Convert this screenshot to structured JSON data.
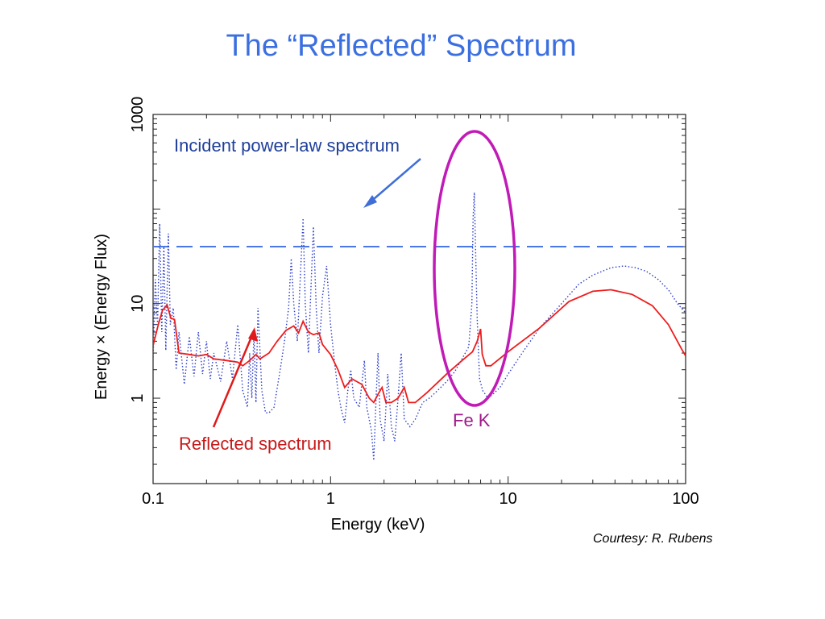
{
  "slide": {
    "title": "The “Reflected” Spectrum",
    "courtesy": "Courtesy:  R. Rubens"
  },
  "chart_data": {
    "type": "line",
    "xlabel": "Energy (keV)",
    "ylabel": "Energy ×  (Energy Flux)",
    "x_scale": "log",
    "y_scale": "log",
    "xlim": [
      0.1,
      100
    ],
    "ylim": [
      0.125,
      1000
    ],
    "x_ticks": [
      {
        "value": 0.1,
        "label": "0.1"
      },
      {
        "value": 1,
        "label": "1"
      },
      {
        "value": 10,
        "label": "10"
      },
      {
        "value": 100,
        "label": "100"
      }
    ],
    "y_ticks": [
      {
        "value": 1,
        "label": "1"
      },
      {
        "value": 10,
        "label": "10"
      },
      {
        "value": 1000,
        "label": "1000"
      }
    ],
    "series": [
      {
        "key": "incident",
        "color": "#4a78e6",
        "style": "dashed",
        "points": [
          [
            0.1,
            40
          ],
          [
            100,
            40
          ]
        ]
      },
      {
        "key": "reflected",
        "color": "#ee1c1c",
        "style": "solid",
        "points": [
          [
            0.1,
            3.6
          ],
          [
            0.107,
            6
          ],
          [
            0.113,
            8.5
          ],
          [
            0.12,
            9.7
          ],
          [
            0.126,
            7
          ],
          [
            0.132,
            6.8
          ],
          [
            0.14,
            3
          ],
          [
            0.16,
            2.9
          ],
          [
            0.18,
            2.8
          ],
          [
            0.2,
            2.9
          ],
          [
            0.22,
            2.6
          ],
          [
            0.26,
            2.5
          ],
          [
            0.3,
            2.4
          ],
          [
            0.32,
            2.2
          ],
          [
            0.35,
            2.5
          ],
          [
            0.38,
            2.9
          ],
          [
            0.4,
            2.6
          ],
          [
            0.45,
            3.0
          ],
          [
            0.5,
            4.0
          ],
          [
            0.56,
            5.2
          ],
          [
            0.62,
            5.8
          ],
          [
            0.66,
            4.9
          ],
          [
            0.7,
            6.5
          ],
          [
            0.75,
            5.0
          ],
          [
            0.8,
            4.7
          ],
          [
            0.86,
            4.9
          ],
          [
            0.9,
            3.7
          ],
          [
            1.0,
            2.9
          ],
          [
            1.1,
            2.0
          ],
          [
            1.2,
            1.3
          ],
          [
            1.32,
            1.6
          ],
          [
            1.5,
            1.4
          ],
          [
            1.65,
            1.0
          ],
          [
            1.75,
            0.9
          ],
          [
            1.85,
            1.1
          ],
          [
            1.95,
            1.3
          ],
          [
            2.05,
            0.9
          ],
          [
            2.2,
            0.9
          ],
          [
            2.4,
            1.0
          ],
          [
            2.6,
            1.3
          ],
          [
            2.75,
            0.9
          ],
          [
            3.0,
            0.9
          ],
          [
            3.5,
            1.15
          ],
          [
            4.5,
            1.8
          ],
          [
            5.5,
            2.5
          ],
          [
            6.3,
            3.1
          ],
          [
            6.7,
            4.0
          ],
          [
            7.0,
            5.4
          ],
          [
            7.15,
            2.9
          ],
          [
            7.5,
            2.2
          ],
          [
            8.0,
            2.2
          ],
          [
            10,
            3.1
          ],
          [
            15,
            5.5
          ],
          [
            22,
            10.5
          ],
          [
            30,
            13.5
          ],
          [
            38,
            14
          ],
          [
            50,
            12.5
          ],
          [
            65,
            9.5
          ],
          [
            80,
            6
          ],
          [
            95,
            3.3
          ],
          [
            100,
            2.8
          ]
        ]
      },
      {
        "key": "incident-spectrum",
        "color": "#2d3fc9",
        "style": "dotted",
        "points": [
          [
            0.1,
            2.5
          ],
          [
            0.103,
            18
          ],
          [
            0.106,
            6
          ],
          [
            0.109,
            70
          ],
          [
            0.112,
            5
          ],
          [
            0.115,
            40
          ],
          [
            0.118,
            3.2
          ],
          [
            0.122,
            55
          ],
          [
            0.125,
            6
          ],
          [
            0.13,
            9
          ],
          [
            0.135,
            2.0
          ],
          [
            0.14,
            5
          ],
          [
            0.15,
            1.4
          ],
          [
            0.16,
            4.5
          ],
          [
            0.17,
            1.7
          ],
          [
            0.18,
            5
          ],
          [
            0.19,
            1.8
          ],
          [
            0.2,
            4
          ],
          [
            0.21,
            1.6
          ],
          [
            0.22,
            3
          ],
          [
            0.24,
            1.5
          ],
          [
            0.26,
            4
          ],
          [
            0.28,
            1.6
          ],
          [
            0.3,
            6
          ],
          [
            0.32,
            1.2
          ],
          [
            0.34,
            0.8
          ],
          [
            0.35,
            3
          ],
          [
            0.36,
            1.0
          ],
          [
            0.37,
            5
          ],
          [
            0.38,
            0.9
          ],
          [
            0.39,
            9
          ],
          [
            0.41,
            1.2
          ],
          [
            0.43,
            0.7
          ],
          [
            0.45,
            0.7
          ],
          [
            0.48,
            0.8
          ],
          [
            0.52,
            2
          ],
          [
            0.55,
            4
          ],
          [
            0.58,
            9
          ],
          [
            0.6,
            30
          ],
          [
            0.62,
            10
          ],
          [
            0.65,
            4
          ],
          [
            0.68,
            25
          ],
          [
            0.7,
            80
          ],
          [
            0.72,
            10
          ],
          [
            0.75,
            3
          ],
          [
            0.78,
            20
          ],
          [
            0.8,
            65
          ],
          [
            0.83,
            9
          ],
          [
            0.86,
            3
          ],
          [
            0.9,
            12
          ],
          [
            0.95,
            25
          ],
          [
            1.0,
            6
          ],
          [
            1.05,
            2.5
          ],
          [
            1.1,
            1.2
          ],
          [
            1.15,
            0.75
          ],
          [
            1.2,
            0.55
          ],
          [
            1.25,
            1.2
          ],
          [
            1.3,
            2
          ],
          [
            1.35,
            1.0
          ],
          [
            1.45,
            0.8
          ],
          [
            1.55,
            2.5
          ],
          [
            1.6,
            0.8
          ],
          [
            1.7,
            0.45
          ],
          [
            1.75,
            0.22
          ],
          [
            1.8,
            0.9
          ],
          [
            1.85,
            3
          ],
          [
            1.9,
            0.6
          ],
          [
            2.0,
            0.35
          ],
          [
            2.1,
            1.8
          ],
          [
            2.2,
            0.5
          ],
          [
            2.3,
            0.35
          ],
          [
            2.4,
            1.0
          ],
          [
            2.5,
            3
          ],
          [
            2.6,
            0.6
          ],
          [
            2.8,
            0.5
          ],
          [
            3.0,
            0.6
          ],
          [
            3.3,
            0.9
          ],
          [
            3.6,
            1.0
          ],
          [
            4.0,
            1.2
          ],
          [
            4.5,
            1.5
          ],
          [
            5.0,
            1.9
          ],
          [
            5.5,
            2.6
          ],
          [
            6.0,
            3.5
          ],
          [
            6.25,
            10
          ],
          [
            6.35,
            80
          ],
          [
            6.45,
            150
          ],
          [
            6.55,
            40
          ],
          [
            6.7,
            7
          ],
          [
            6.9,
            1.6
          ],
          [
            7.2,
            1.2
          ],
          [
            7.7,
            1.0
          ],
          [
            8.2,
            1.1
          ],
          [
            9,
            1.3
          ],
          [
            10,
            1.8
          ],
          [
            12,
            3.0
          ],
          [
            15,
            5.5
          ],
          [
            20,
            10
          ],
          [
            25,
            16
          ],
          [
            30,
            20
          ],
          [
            38,
            24
          ],
          [
            45,
            25
          ],
          [
            52,
            24
          ],
          [
            60,
            22
          ],
          [
            70,
            18
          ],
          [
            80,
            14
          ],
          [
            90,
            10
          ],
          [
            100,
            8
          ]
        ]
      }
    ],
    "annotations": {
      "incident_label": "Incident power-law spectrum",
      "reflected_label": "Reflected spectrum",
      "fe_label": "Fe K",
      "incident_color": "#1f3f9a",
      "reflected_color": "#c81a1a",
      "fe_color": "#a0188a",
      "arrow_blue": "#3f6ed8",
      "arrow_red": "#e01a1a",
      "ellipse_color": "#c01bb6"
    }
  }
}
